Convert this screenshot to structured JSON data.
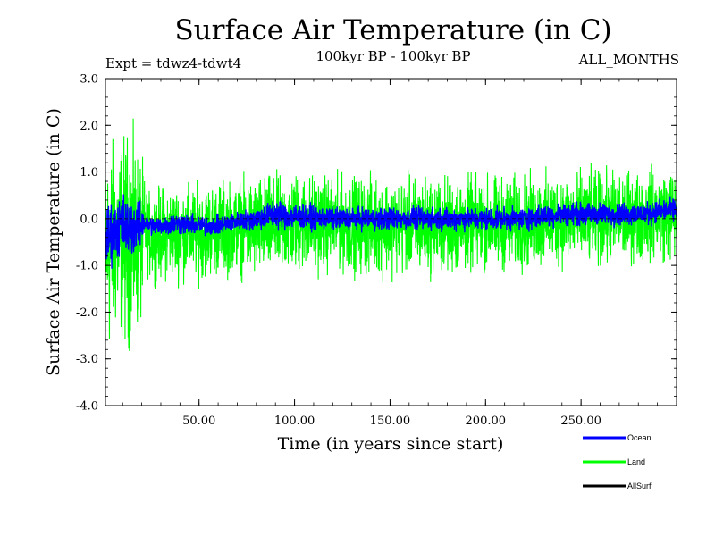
{
  "chart_data": {
    "type": "line",
    "title": "Surface Air Temperature (in C)",
    "subtitle": "100kyr BP - 100kyr BP",
    "experiment": "Expt = tdwz4-tdwt4",
    "season": "ALL_MONTHS",
    "xlabel": "Time (in years since start)",
    "ylabel": "Surface Air Temperature (in C)",
    "xlim": [
      1,
      300
    ],
    "ylim": [
      -4.0,
      3.0
    ],
    "xticks": [
      50,
      100,
      150,
      200,
      250
    ],
    "xtick_labels": [
      "50.00",
      "100.00",
      "150.00",
      "200.00",
      "250.00"
    ],
    "yticks": [
      -4,
      -3,
      -2,
      -1,
      0,
      1,
      2,
      3
    ],
    "ytick_labels": [
      "-4.0",
      "-3.0",
      "-2.0",
      "-1.0",
      "0.0",
      "1.0",
      "2.0",
      "3.0"
    ],
    "zero_line": true,
    "grid": false,
    "legend_position": "bottom-right",
    "series": [
      {
        "name": "Land",
        "color": "#00ff00",
        "envelope_years": [
          1,
          3,
          6,
          9,
          12,
          15,
          18,
          20,
          21,
          22,
          25,
          30,
          40,
          50,
          60,
          70,
          80,
          90,
          100,
          120,
          140,
          160,
          180,
          200,
          220,
          240,
          260,
          280,
          300
        ],
        "envelope_max": [
          1.6,
          2.2,
          2.0,
          2.1,
          2.3,
          2.2,
          1.9,
          1.6,
          1.3,
          0.8,
          0.7,
          0.9,
          0.9,
          0.9,
          1.0,
          1.0,
          1.1,
          1.1,
          1.2,
          1.1,
          1.1,
          1.1,
          1.1,
          1.1,
          1.1,
          1.2,
          1.2,
          1.2,
          1.3
        ],
        "envelope_min": [
          -2.9,
          -3.4,
          -2.9,
          -3.0,
          -3.2,
          -3.1,
          -2.8,
          -2.6,
          -1.8,
          -1.3,
          -1.5,
          -1.5,
          -1.5,
          -1.5,
          -1.4,
          -1.4,
          -1.5,
          -1.4,
          -1.4,
          -1.3,
          -1.4,
          -1.4,
          -1.4,
          -1.3,
          -1.3,
          -1.2,
          -1.2,
          -1.1,
          -1.1
        ]
      },
      {
        "name": "Ocean",
        "color": "#0000ff",
        "envelope_years": [
          1,
          3,
          6,
          9,
          12,
          15,
          18,
          20,
          21,
          22,
          25,
          30,
          40,
          50,
          60,
          70,
          80,
          90,
          100,
          120,
          140,
          160,
          180,
          200,
          220,
          240,
          260,
          280,
          300
        ],
        "envelope_max": [
          0.2,
          0.6,
          0.4,
          0.8,
          0.6,
          0.6,
          0.4,
          0.5,
          0.2,
          0.1,
          0.1,
          0.1,
          0.2,
          0.1,
          0.1,
          0.2,
          0.3,
          0.5,
          0.4,
          0.3,
          0.3,
          0.3,
          0.3,
          0.3,
          0.3,
          0.4,
          0.4,
          0.4,
          0.5
        ],
        "envelope_min": [
          -1.2,
          -1.3,
          -0.9,
          -1.0,
          -1.0,
          -0.9,
          -0.8,
          -0.7,
          -0.4,
          -0.3,
          -0.4,
          -0.4,
          -0.4,
          -0.4,
          -0.4,
          -0.3,
          -0.3,
          -0.3,
          -0.3,
          -0.3,
          -0.3,
          -0.3,
          -0.3,
          -0.3,
          -0.3,
          -0.2,
          -0.2,
          -0.2,
          -0.1
        ]
      },
      {
        "name": "AllSurf",
        "color": "#000000",
        "envelope_years": [],
        "envelope_max": [],
        "envelope_min": []
      }
    ]
  }
}
